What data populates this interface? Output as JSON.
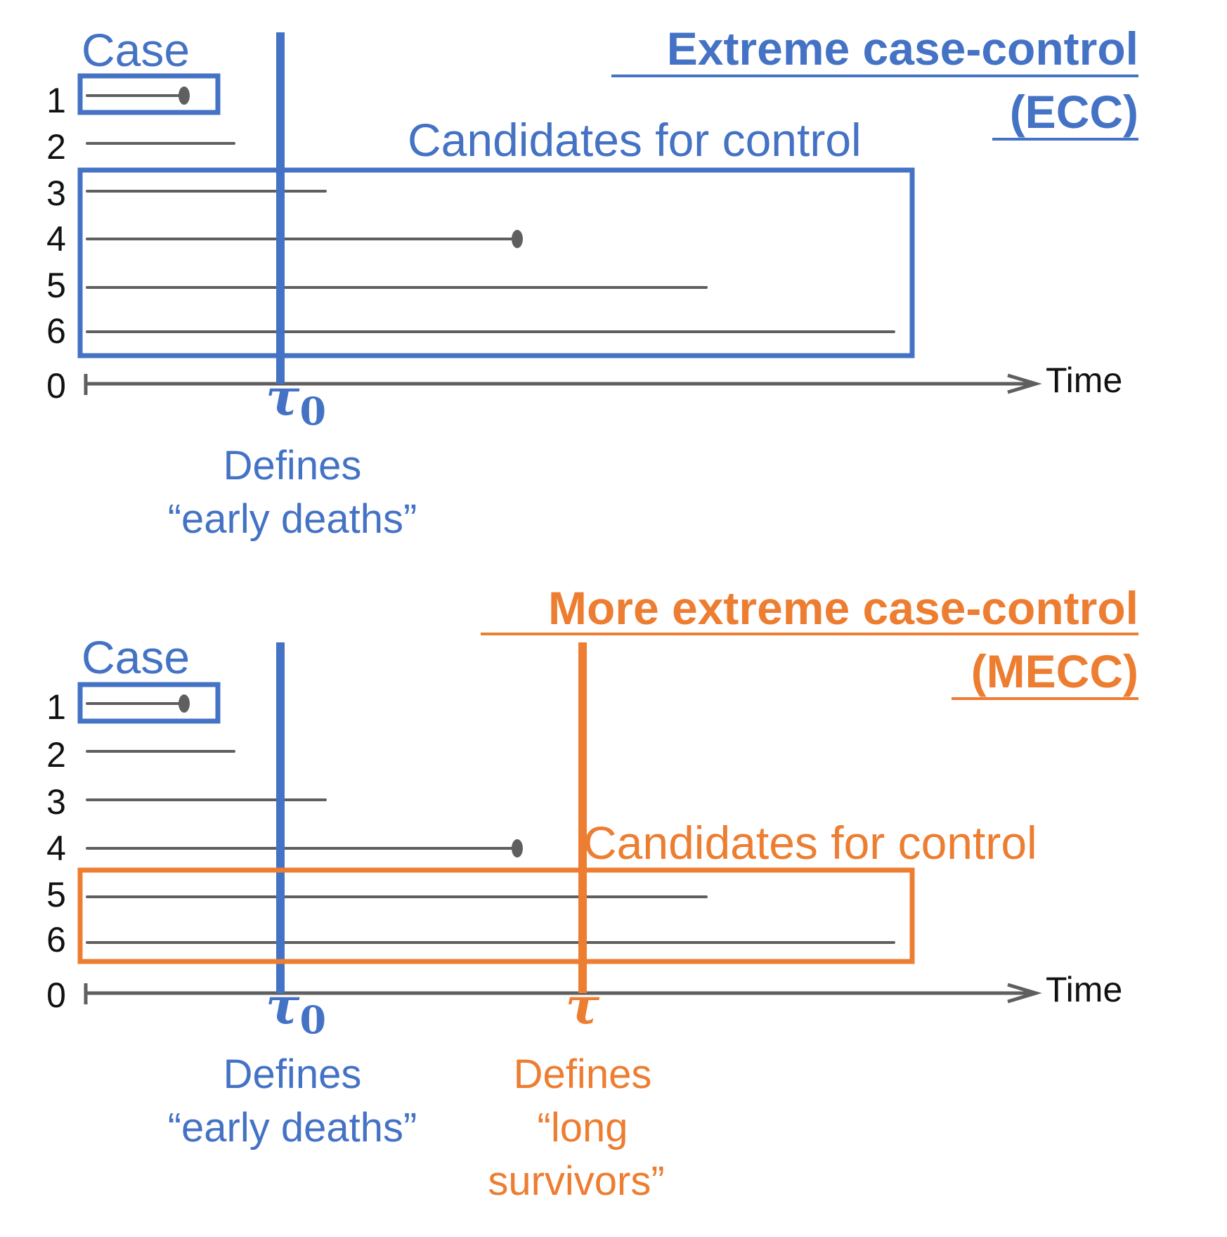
{
  "colors": {
    "blue": "#4472C4",
    "orange": "#ED7D31",
    "gray": "#5f5f5f"
  },
  "panels": [
    {
      "id": "ecc",
      "title_line1": "Extreme case-control",
      "title_line2": "(ECC)",
      "case_label": "Case",
      "candidates_label": "Candidates for control",
      "axis_zero": "0",
      "axis_label": "Time",
      "row_labels": [
        "1",
        "2",
        "3",
        "4",
        "5",
        "6"
      ],
      "tau0": {
        "symbol": "τ",
        "subscript": "0",
        "line1": "Defines",
        "line2": "“early deaths”"
      }
    },
    {
      "id": "mecc",
      "title_line1": "More extreme case-control",
      "title_line2": "(MECC)",
      "case_label": "Case",
      "candidates_label": "Candidates for control",
      "axis_zero": "0",
      "axis_label": "Time",
      "row_labels": [
        "1",
        "2",
        "3",
        "4",
        "5",
        "6"
      ],
      "tau0": {
        "symbol": "τ",
        "subscript": "0",
        "line1": "Defines",
        "line2": "“early deaths”"
      },
      "tau": {
        "symbol": "τ",
        "line1": "Defines",
        "line2": "“long",
        "line3": "survivors”"
      }
    }
  ]
}
